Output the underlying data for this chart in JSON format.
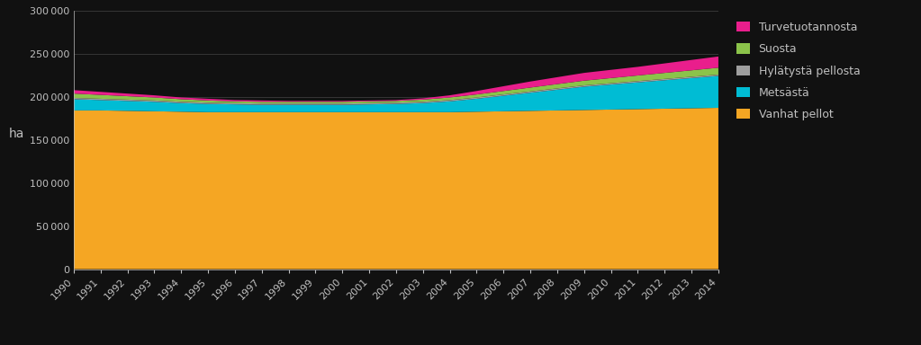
{
  "years": [
    1990,
    1991,
    1992,
    1993,
    1994,
    1995,
    1996,
    1997,
    1998,
    1999,
    2000,
    2001,
    2002,
    2003,
    2004,
    2005,
    2006,
    2007,
    2008,
    2009,
    2010,
    2011,
    2012,
    2013,
    2014
  ],
  "vanhat_pellot": [
    184000,
    184000,
    183500,
    183000,
    182500,
    182000,
    182000,
    182000,
    182000,
    182000,
    182000,
    182000,
    182000,
    182000,
    182000,
    182500,
    183000,
    183500,
    184000,
    184500,
    185000,
    185500,
    186000,
    186500,
    187000
  ],
  "metsasta": [
    13000,
    12000,
    11500,
    11000,
    10000,
    9500,
    9000,
    8500,
    8500,
    8500,
    8500,
    9000,
    9500,
    10500,
    12500,
    15000,
    18000,
    21000,
    24000,
    27000,
    29000,
    31000,
    33000,
    35000,
    37000
  ],
  "hylattysta_pellosta": [
    1500,
    1500,
    1500,
    1500,
    1500,
    1500,
    1500,
    1500,
    1500,
    1500,
    1500,
    1500,
    1500,
    1500,
    1500,
    1500,
    1500,
    1500,
    1500,
    1500,
    1500,
    1500,
    1500,
    1500,
    1500
  ],
  "suosta": [
    5000,
    4500,
    4000,
    3500,
    3000,
    2500,
    2000,
    2000,
    2000,
    2000,
    2000,
    2000,
    2000,
    2500,
    3000,
    3500,
    4000,
    4500,
    5000,
    5500,
    6000,
    6500,
    7000,
    7500,
    8000
  ],
  "turvetuotannosta": [
    4000,
    3500,
    3000,
    2500,
    2000,
    2000,
    1500,
    1500,
    1000,
    1000,
    1000,
    1000,
    1000,
    1500,
    2500,
    4000,
    5500,
    7000,
    8000,
    9000,
    9500,
    10000,
    11000,
    12000,
    13000
  ],
  "colors": {
    "vanhat_pellot": "#F5A623",
    "metsasta": "#00BCD4",
    "hylattysta_pellosta": "#9E9E9E",
    "suosta": "#8BC34A",
    "turvetuotannosta": "#E91E8C"
  },
  "ylabel": "ha",
  "ylim": [
    0,
    300000
  ],
  "yticks": [
    0,
    50000,
    100000,
    150000,
    200000,
    250000,
    300000
  ],
  "background_color": "#111111",
  "plot_bg_color": "#111111",
  "text_color": "#C0C0C0",
  "grid_color": "#444444",
  "legend_bg": "#111111"
}
